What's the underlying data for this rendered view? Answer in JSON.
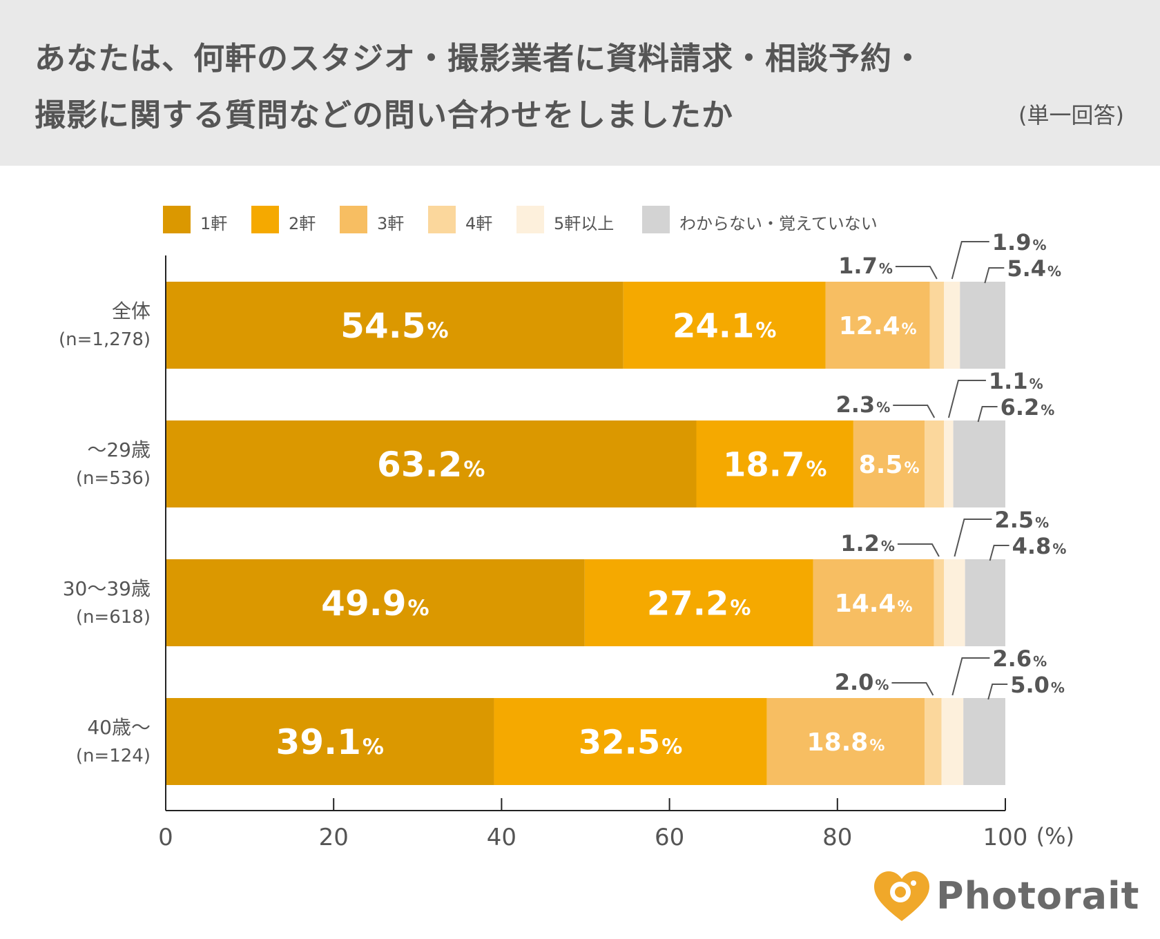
{
  "header": {
    "title_line1": "あなたは、何軒のスタジオ・撮影業者に資料請求・相談予約・",
    "title_line2": "撮影に関する質問などの問い合わせをしましたか",
    "note": "(単一回答)"
  },
  "logo": {
    "text": "Photorait",
    "icon": "heart-camera-icon",
    "color": "#f0a82a"
  },
  "chart_data": {
    "type": "bar",
    "orientation": "horizontal",
    "stacked": true,
    "xlim": [
      0,
      100
    ],
    "xticks": [
      "0",
      "20",
      "40",
      "60",
      "80",
      "100"
    ],
    "xunit": "(%)",
    "legend_position": "top",
    "series": [
      {
        "name": "1軒",
        "color": "#db9800"
      },
      {
        "name": "2軒",
        "color": "#f5a900"
      },
      {
        "name": "3軒",
        "color": "#f7be62"
      },
      {
        "name": "4軒",
        "color": "#fbd79c"
      },
      {
        "name": "5軒以上",
        "color": "#fdf0dc"
      },
      {
        "name": "わからない・覚えていない",
        "color": "#d3d3d3"
      }
    ],
    "categories": [
      {
        "label": "全体",
        "n": "(n=1,278)",
        "values": [
          54.5,
          24.1,
          12.4,
          1.7,
          1.9,
          5.4
        ],
        "labels": [
          "54.5",
          "24.1",
          "12.4",
          "1.7",
          "1.9",
          "5.4"
        ]
      },
      {
        "label": "〜29歳",
        "n": "(n=536)",
        "values": [
          63.2,
          18.7,
          8.5,
          2.3,
          1.1,
          6.2
        ],
        "labels": [
          "63.2",
          "18.7",
          "8.5",
          "2.3",
          "1.1",
          "6.2"
        ]
      },
      {
        "label": "30〜39歳",
        "n": "(n=618)",
        "values": [
          49.9,
          27.2,
          14.4,
          1.2,
          2.5,
          4.8
        ],
        "labels": [
          "49.9",
          "27.2",
          "14.4",
          "1.2",
          "2.5",
          "4.8"
        ]
      },
      {
        "label": "40歳〜",
        "n": "(n=124)",
        "values": [
          39.1,
          32.5,
          18.8,
          2.0,
          2.6,
          5.0
        ],
        "labels": [
          "39.1",
          "32.5",
          "18.8",
          "2.0",
          "2.6",
          "5.0"
        ]
      }
    ],
    "percent_sign": "%"
  }
}
